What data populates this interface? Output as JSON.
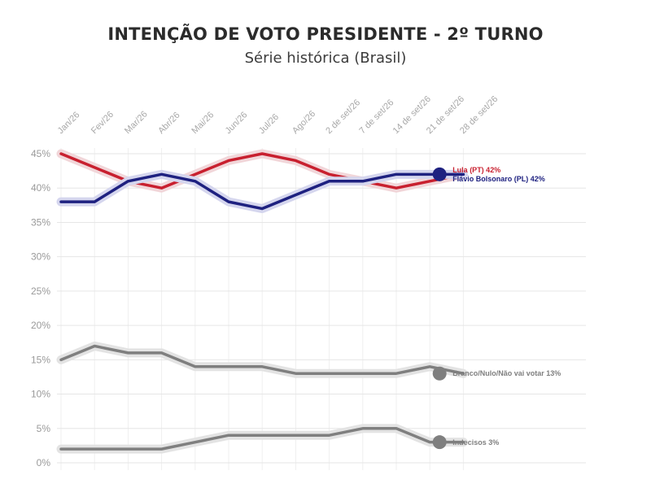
{
  "chart_data": {
    "type": "line",
    "title": "INTENÇÃO DE VOTO PRESIDENTE - 2º TURNO",
    "subtitle": "Série histórica (Brasil)",
    "xlabel": "",
    "ylabel": "",
    "ylim": [
      0,
      45
    ],
    "grid": true,
    "legend": "end-of-line labels",
    "categories": [
      "Jan/26",
      "Fev/26",
      "Mar/26",
      "Abr/26",
      "Mai/26",
      "Jun/26",
      "Jul/26",
      "Ago/26",
      "2 de set/26",
      "7 de set/26",
      "14 de set/26",
      "21 de set/26",
      "28 de set/26"
    ],
    "y_ticks": [
      "0%",
      "5%",
      "10%",
      "15%",
      "20%",
      "25%",
      "30%",
      "35%",
      "40%",
      "45%"
    ],
    "series": [
      {
        "name": "Lula (PT)",
        "label": "Lula (PT) 42%",
        "color": "#c8202f",
        "halo": "#f1d6d9",
        "values": [
          45,
          43,
          41,
          40,
          42,
          44,
          45,
          44,
          42,
          41,
          40,
          41,
          42
        ],
        "final_point": false
      },
      {
        "name": "Flávio Bolsonaro (PL)",
        "label": "Flávio Bolsonaro (PL) 42%",
        "color": "#1e2180",
        "halo": "#d5d6ee",
        "values": [
          38,
          38,
          41,
          42,
          41,
          38,
          37,
          39,
          41,
          41,
          42,
          42,
          42
        ],
        "final_point": true
      },
      {
        "name": "Branco/Nulo/Não vai votar",
        "label": "Branco/Nulo/Não vai votar 13%",
        "color": "#7f7f7f",
        "halo": "#e3e3e3",
        "values": [
          15,
          17,
          16,
          16,
          14,
          14,
          14,
          13,
          13,
          13,
          13,
          14,
          13
        ],
        "final_point": true
      },
      {
        "name": "Indecisos",
        "label": "Indecisos 3%",
        "color": "#7f7f7f",
        "halo": "#e3e3e3",
        "values": [
          2,
          2,
          2,
          2,
          3,
          4,
          4,
          4,
          4,
          5,
          5,
          3,
          3
        ],
        "final_point": true
      }
    ]
  }
}
